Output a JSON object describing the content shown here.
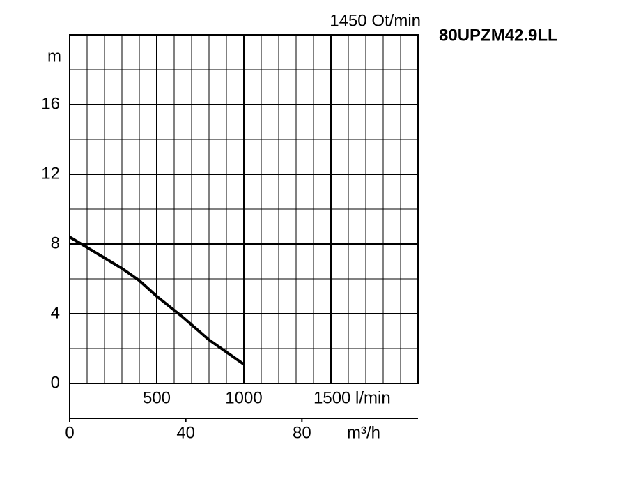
{
  "chart_data": {
    "type": "line",
    "title": "1450 Ot/min",
    "subtitle": "80UPZM42.9LL",
    "y_label": "m",
    "x2_label": "m³/h",
    "x": [
      0,
      100,
      200,
      300,
      400,
      500,
      650,
      800,
      1000
    ],
    "values": [
      8.4,
      7.8,
      7.2,
      6.6,
      5.9,
      5.0,
      3.8,
      2.5,
      1.1
    ],
    "color": "#000000",
    "xlim": [
      0,
      2000
    ],
    "xticks": [
      500,
      1000,
      {
        "value": 1500,
        "label": "1500 l/min"
      }
    ],
    "x2lim": [
      0,
      120
    ],
    "x2ticks": [
      0,
      40,
      80
    ],
    "ylim": [
      0,
      20
    ],
    "yticks": [
      0,
      4,
      8,
      12,
      16
    ],
    "grid": true
  }
}
